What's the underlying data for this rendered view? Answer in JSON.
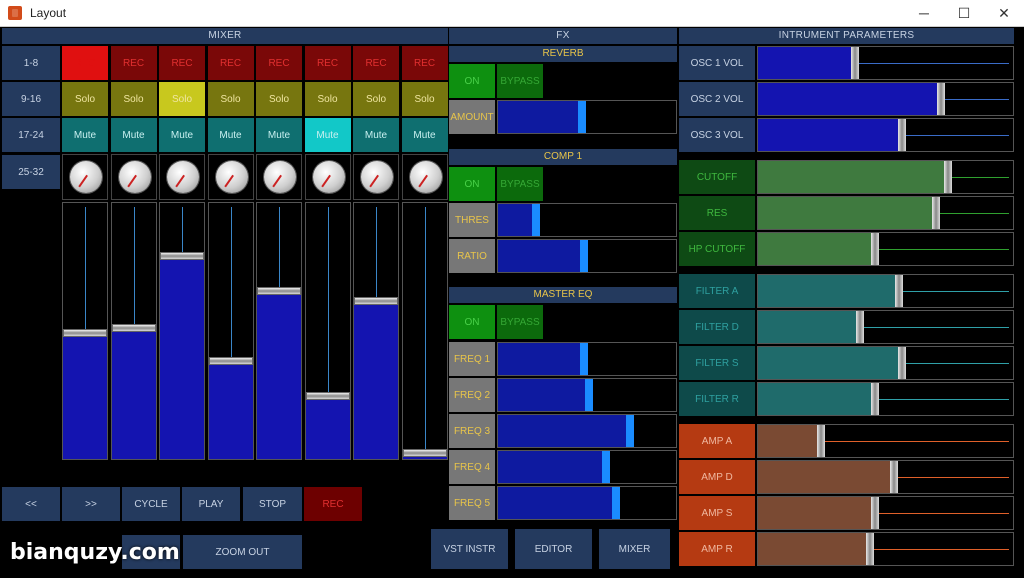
{
  "window": {
    "title": "Layout",
    "min": "─",
    "max": "☐",
    "close": "✕"
  },
  "mixer": {
    "title": "MIXER",
    "banks": [
      "1-8",
      "9-16",
      "17-24",
      "25-32"
    ],
    "rec_label": "REC",
    "solo_label": "Solo",
    "mute_label": "Mute",
    "channels": [
      {
        "rec_active": true,
        "solo_active": false,
        "mute_active": false,
        "level": 0.5
      },
      {
        "rec_active": false,
        "solo_active": false,
        "mute_active": false,
        "level": 0.52
      },
      {
        "rec_active": false,
        "solo_active": true,
        "mute_active": false,
        "level": 0.81
      },
      {
        "rec_active": false,
        "solo_active": false,
        "mute_active": false,
        "level": 0.39
      },
      {
        "rec_active": false,
        "solo_active": false,
        "mute_active": false,
        "level": 0.67
      },
      {
        "rec_active": false,
        "solo_active": false,
        "mute_active": true,
        "level": 0.25
      },
      {
        "rec_active": false,
        "solo_active": false,
        "mute_active": false,
        "level": 0.63
      },
      {
        "rec_active": false,
        "solo_active": false,
        "mute_active": false,
        "level": 0.02
      }
    ]
  },
  "transport": {
    "rewind": "<<",
    "forward": ">>",
    "cycle": "CYCLE",
    "play": "PLAY",
    "stop": "STOP",
    "rec": "REC",
    "zoom_out": "ZOOM OUT"
  },
  "fx": {
    "title": "FX",
    "reverb": {
      "title": "REVERB",
      "on": "ON",
      "bypass": "BYPASS",
      "amount_label": "AMOUNT",
      "amount": 0.47
    },
    "comp": {
      "title": "COMP 1",
      "on": "ON",
      "bypass": "BYPASS",
      "thres_label": "THRES",
      "thres": 0.2,
      "ratio_label": "RATIO",
      "ratio": 0.48
    },
    "eq": {
      "title": "MASTER EQ",
      "on": "ON",
      "bypass": "BYPASS",
      "bands": [
        {
          "label": "FREQ 1",
          "value": 0.48
        },
        {
          "label": "FREQ 2",
          "value": 0.51
        },
        {
          "label": "FREQ 3",
          "value": 0.75
        },
        {
          "label": "FREQ 4",
          "value": 0.61
        },
        {
          "label": "FREQ 5",
          "value": 0.67
        }
      ]
    },
    "footer": {
      "vst": "VST INSTR",
      "editor": "EDITOR",
      "mixer": "MIXER"
    }
  },
  "instrument": {
    "title": "INTRUMENT PARAMETERS",
    "groups": [
      {
        "color": "#1414b0",
        "label_bg": "#243a5e",
        "label_color": "#c7d2e3",
        "line": "#3a6cc8",
        "params": [
          {
            "label": "OSC 1 VOL",
            "value": 0.38
          },
          {
            "label": "OSC 2 VOL",
            "value": 0.73
          },
          {
            "label": "OSC 3 VOL",
            "value": 0.57
          }
        ]
      },
      {
        "color": "#3f7a3f",
        "label_bg": "#0e4a14",
        "label_color": "#3fb83f",
        "line": "#2fa02f",
        "params": [
          {
            "label": "CUTOFF",
            "value": 0.76
          },
          {
            "label": "RES",
            "value": 0.71
          },
          {
            "label": "HP CUTOFF",
            "value": 0.46
          }
        ]
      },
      {
        "color": "#1f6b6b",
        "label_bg": "#0e4a4a",
        "label_color": "#2fa0a0",
        "line": "#2fa0a8",
        "params": [
          {
            "label": "FILTER A",
            "value": 0.56
          },
          {
            "label": "FILTER D",
            "value": 0.4
          },
          {
            "label": "FILTER S",
            "value": 0.57
          },
          {
            "label": "FILTER R",
            "value": 0.46
          }
        ]
      },
      {
        "color": "#7a4a33",
        "label_bg": "#b53a12",
        "label_color": "#f0b8a0",
        "line": "#e0602a",
        "params": [
          {
            "label": "AMP A",
            "value": 0.24
          },
          {
            "label": "AMP D",
            "value": 0.54
          },
          {
            "label": "AMP S",
            "value": 0.46
          },
          {
            "label": "AMP R",
            "value": 0.44
          }
        ]
      }
    ]
  },
  "watermark": "bianquzy.com"
}
